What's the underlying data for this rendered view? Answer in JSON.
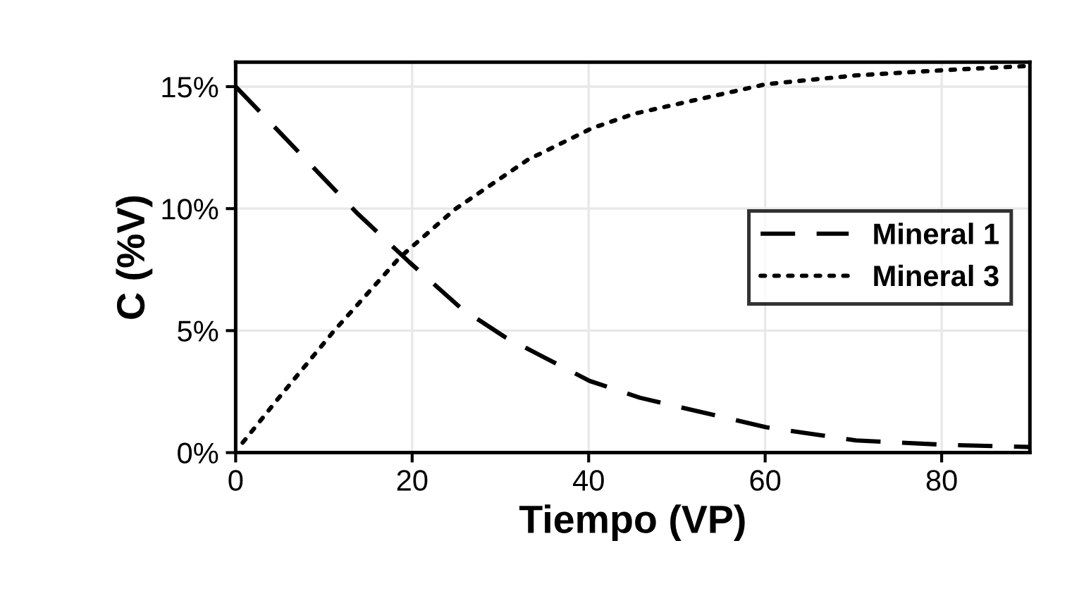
{
  "chart_data": {
    "type": "line",
    "xlabel": "Tiempo (VP)",
    "ylabel": "C (%V)",
    "xlim": [
      0,
      90
    ],
    "xticks": [
      0,
      20,
      40,
      60,
      80
    ],
    "ylim": [
      0,
      16
    ],
    "yticks": [
      {
        "value": 0,
        "label": "0%"
      },
      {
        "value": 5,
        "label": "5%"
      },
      {
        "value": 10,
        "label": "10%"
      },
      {
        "value": 15,
        "label": "15%"
      }
    ],
    "grid": true,
    "legend": "right",
    "marker": "none",
    "series": [
      {
        "name": "Mineral 1",
        "color": "#000000",
        "line_style": "dashed",
        "x": [
          0,
          6.2,
          13.8,
          19.7,
          25.6,
          30.5,
          40.1,
          45.8,
          60.1,
          70.3,
          80.5,
          90
        ],
        "values": [
          15,
          12.67,
          9.8,
          7.8,
          5.9,
          4.74,
          2.94,
          2.25,
          1.04,
          0.5,
          0.32,
          0.23
        ]
      },
      {
        "name": "Mineral 3",
        "color": "#000000",
        "line_style": "dotted",
        "x": [
          0.8,
          4.9,
          11.1,
          18.6,
          24.8,
          33.1,
          40.4,
          45.3,
          60.1,
          70.3,
          80.5,
          90
        ],
        "values": [
          0.41,
          2.25,
          4.97,
          8.0,
          9.96,
          12.0,
          13.3,
          13.9,
          15.1,
          15.46,
          15.68,
          15.85
        ]
      }
    ]
  }
}
